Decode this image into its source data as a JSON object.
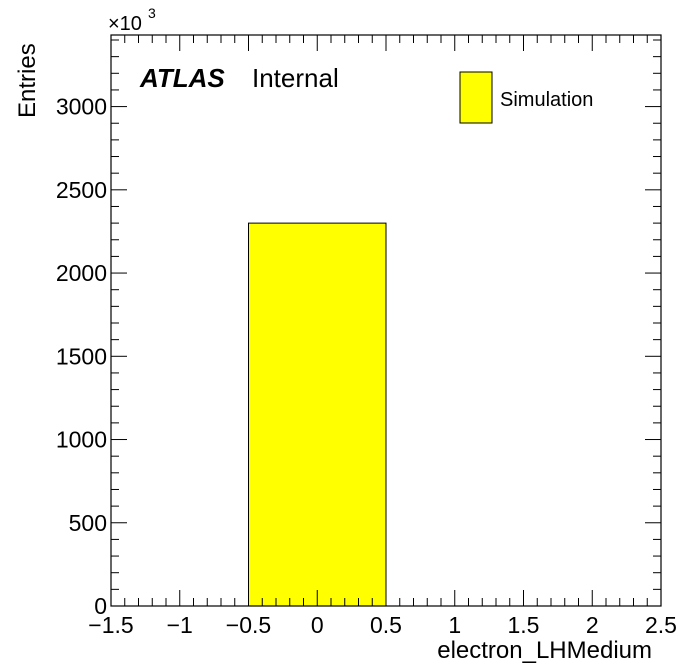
{
  "chart_data": {
    "type": "bar",
    "histogram": true,
    "bin_edges": [
      -1.5,
      -0.5,
      0.5,
      1.5,
      2.5
    ],
    "values": [
      0,
      2300,
      0,
      0
    ],
    "values_unit_note": "×10^3",
    "fill_color": "#ffff00",
    "edge_color": "#000000",
    "xlabel": "electron_LHMedium",
    "ylabel": "Entries",
    "y_multiplier_label": "×10",
    "y_multiplier_exponent": "3",
    "xlim": [
      -1.5,
      2.5
    ],
    "ylim": [
      0,
      3430
    ],
    "x_ticks": [
      -1.5,
      -1,
      -0.5,
      0,
      0.5,
      1,
      1.5,
      2,
      2.5
    ],
    "x_tick_labels": [
      "−1.5",
      "−1",
      "−0.5",
      "0",
      "0.5",
      "1",
      "1.5",
      "2",
      "2.5"
    ],
    "y_ticks": [
      0,
      500,
      1000,
      1500,
      2000,
      2500,
      3000
    ],
    "y_tick_labels": [
      "0",
      "500",
      "1000",
      "1500",
      "2000",
      "2500",
      "3000"
    ],
    "legend": [
      {
        "name": "Simulation",
        "color": "#ffff00"
      }
    ],
    "legend_position": "top-right",
    "grid": false,
    "annotation": {
      "experiment": "ATLAS",
      "status": "Internal"
    }
  }
}
